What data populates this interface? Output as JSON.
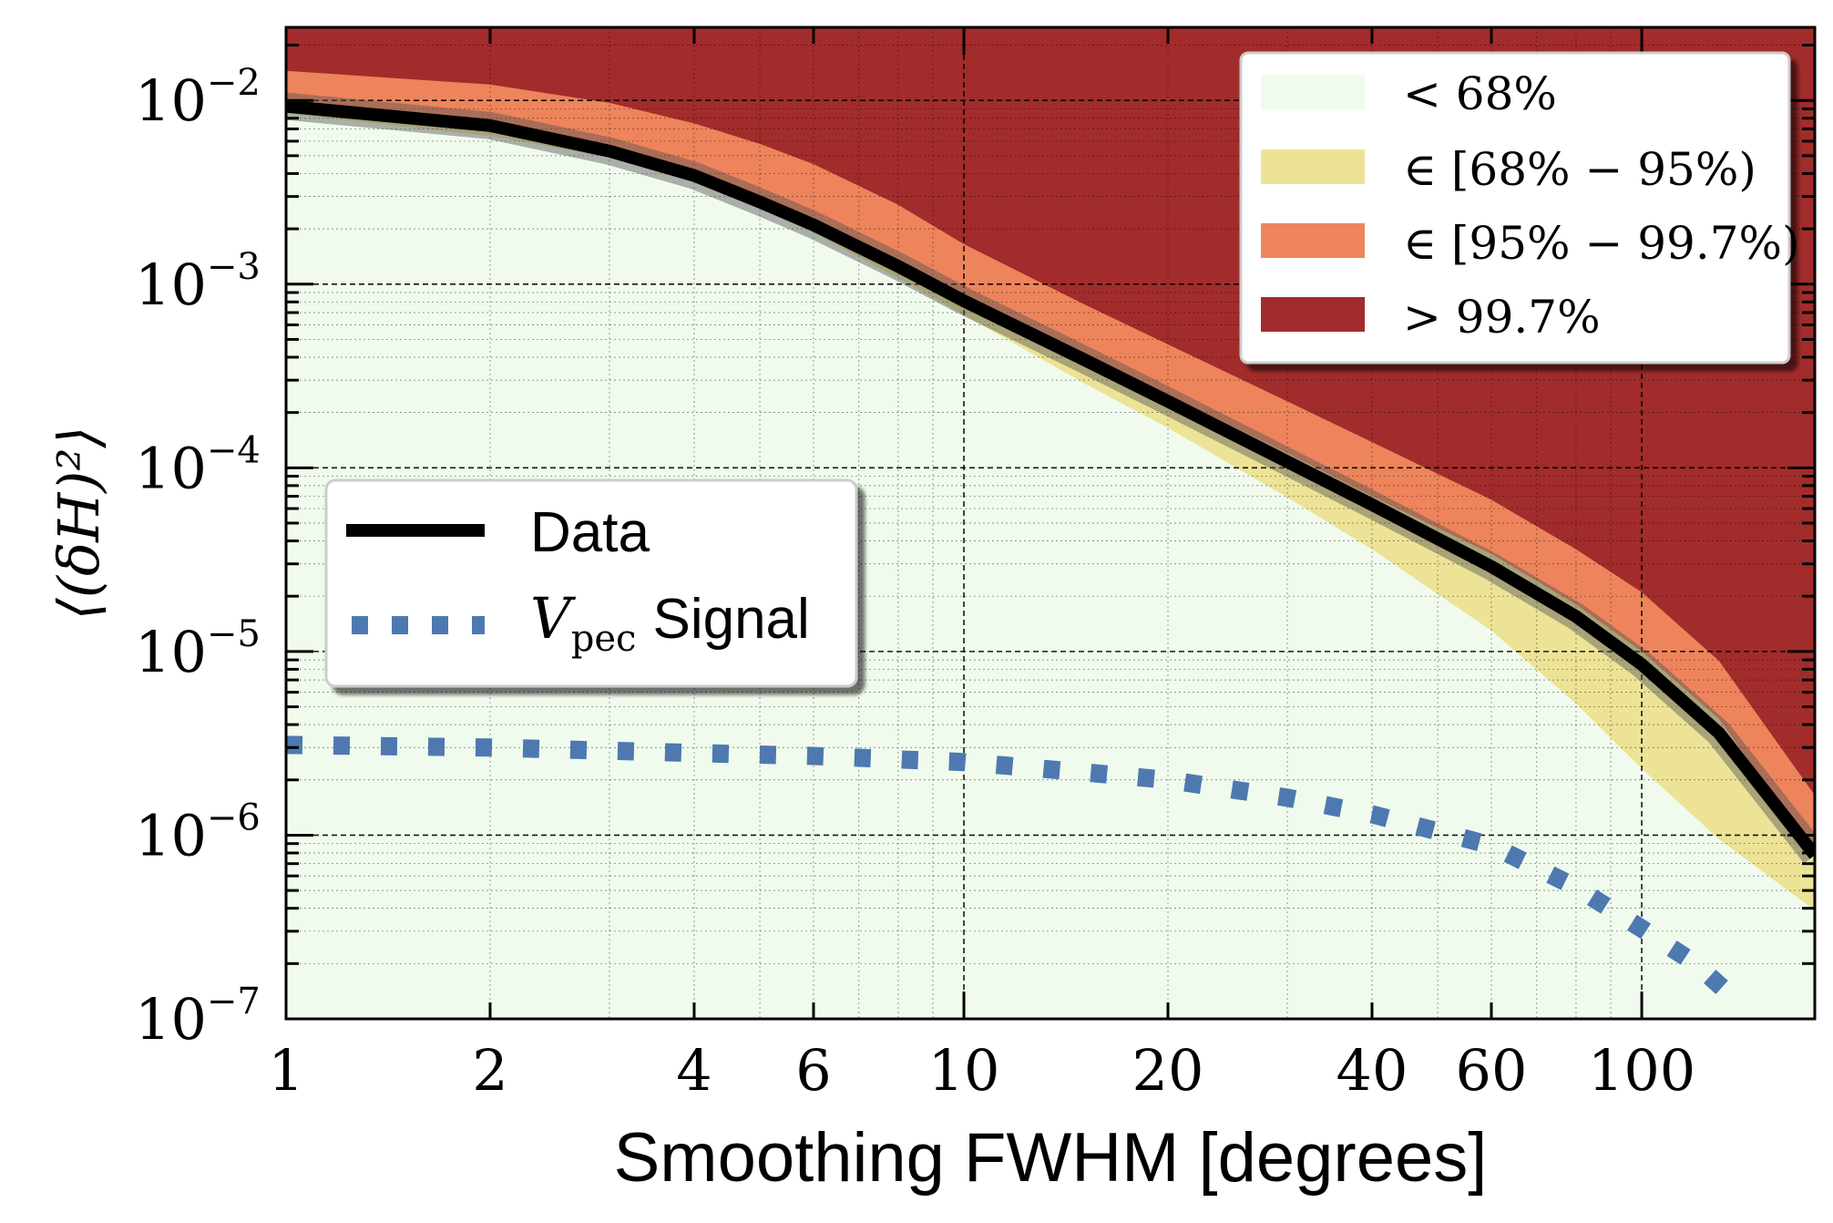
{
  "chart_data": {
    "type": "area",
    "xlabel": "Smoothing FWHM [degrees]",
    "ylabel": "⟨(δH)²⟩",
    "x_scale": "log",
    "y_scale": "log",
    "xlim": [
      1,
      180
    ],
    "ylim": [
      1e-07,
      0.025
    ],
    "x_ticks": [
      {
        "value": 1,
        "label": "1"
      },
      {
        "value": 2,
        "label": "2"
      },
      {
        "value": 4,
        "label": "4"
      },
      {
        "value": 6,
        "label": "6"
      },
      {
        "value": 10,
        "label": "10"
      },
      {
        "value": 20,
        "label": "20"
      },
      {
        "value": 40,
        "label": "40"
      },
      {
        "value": 60,
        "label": "60"
      },
      {
        "value": 100,
        "label": "100"
      }
    ],
    "y_ticks": [
      {
        "value": 0.01,
        "base": "10",
        "exp": "−2"
      },
      {
        "value": 0.001,
        "base": "10",
        "exp": "−3"
      },
      {
        "value": 0.0001,
        "base": "10",
        "exp": "−4"
      },
      {
        "value": 1e-05,
        "base": "10",
        "exp": "−5"
      },
      {
        "value": 1e-06,
        "base": "10",
        "exp": "−6"
      },
      {
        "value": 1e-07,
        "base": "10",
        "exp": "−7"
      }
    ],
    "grid": true,
    "bands_x": [
      1,
      2,
      3,
      4,
      5,
      6,
      8,
      10,
      15,
      20,
      30,
      40,
      60,
      80,
      100,
      130,
      180
    ],
    "bands": [
      {
        "name": "< 68%",
        "color": "#f0fbee",
        "upper": [
          0.0085,
          0.0064,
          0.0049,
          0.0036,
          0.0026,
          0.0019,
          0.00108,
          0.00068,
          0.00029,
          0.000165,
          6.9e-05,
          3.6e-05,
          1.3e-05,
          5.2e-06,
          2.3e-06,
          9.5e-07,
          3.9e-07
        ]
      },
      {
        "name": "∈ [68% − 95%)",
        "color": "#ede396",
        "upper": [
          0.0098,
          0.0077,
          0.0056,
          0.0041,
          0.003,
          0.0023,
          0.00137,
          0.00088,
          0.00042,
          0.00025,
          0.00012,
          7e-05,
          3.4e-05,
          1.8e-05,
          1e-05,
          4.3e-06,
          8e-07
        ]
      },
      {
        "name": "∈ [95% − 99.7%)",
        "color": "#ee845b",
        "upper": [
          0.0145,
          0.0122,
          0.0097,
          0.0075,
          0.0058,
          0.0045,
          0.0027,
          0.00165,
          0.00078,
          0.00047,
          0.00023,
          0.000138,
          6.7e-05,
          3.6e-05,
          2.1e-05,
          8.9e-06,
          1.65e-06
        ]
      },
      {
        "name": "> 99.7%",
        "color": "#a22c2b",
        "upper": "top"
      }
    ],
    "series": [
      {
        "name": "Data",
        "color": "#000000",
        "style": "solid",
        "x": [
          1,
          2,
          3,
          4,
          5,
          6,
          8,
          10,
          15,
          20,
          30,
          40,
          60,
          80,
          100,
          130,
          180
        ],
        "y": [
          0.0093,
          0.0073,
          0.0053,
          0.0039,
          0.0028,
          0.0021,
          0.00125,
          0.00081,
          0.00039,
          0.00023,
          0.000108,
          6.3e-05,
          2.9e-05,
          1.55e-05,
          8.5e-06,
          3.6e-06,
          7.8e-07
        ]
      },
      {
        "name": "V_pec Signal",
        "color": "#4e79b0",
        "style": "dotted",
        "x": [
          1,
          2,
          4,
          6,
          10,
          15,
          20,
          30,
          40,
          60,
          80,
          100,
          120,
          140
        ],
        "y": [
          3.1e-06,
          3e-06,
          2.8e-06,
          2.7e-06,
          2.5e-06,
          2.2e-06,
          2e-06,
          1.6e-06,
          1.3e-06,
          8.8e-07,
          5.2e-07,
          3.1e-07,
          2e-07,
          1.2e-07
        ]
      }
    ],
    "legends": [
      {
        "placement": "top-right",
        "entries": [
          "< 68%",
          "∈ [68% − 95%)",
          "∈ [95% − 99.7%)",
          "> 99.7%"
        ]
      },
      {
        "placement": "center-left",
        "entries": [
          "Data",
          "V_pec Signal"
        ]
      }
    ]
  },
  "legend_text": {
    "band_68": "< 68%",
    "band_95": "∈ [68% − 95%)",
    "band_997": "∈ [95% − 99.7%)",
    "band_top": "> 99.7%",
    "data": "Data",
    "vpec_var": "V",
    "vpec_sub": "pec",
    "vpec_signal": "Signal"
  }
}
